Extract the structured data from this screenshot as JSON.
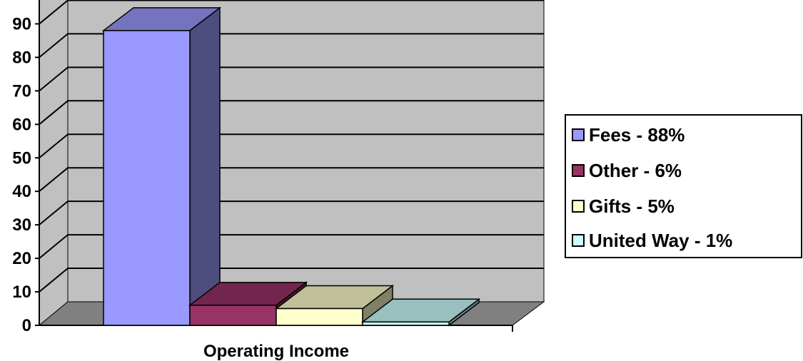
{
  "chart_data": {
    "type": "bar",
    "title": "",
    "xlabel": "Operating Income",
    "ylabel": "",
    "ylim": [
      0,
      90
    ],
    "yticks": [
      "0",
      "10",
      "20",
      "30",
      "40",
      "50",
      "60",
      "70",
      "80",
      "90"
    ],
    "grid": true,
    "legend_position": "right",
    "categories": [
      "Operating Income"
    ],
    "series": [
      {
        "name": "Fees - 88%",
        "values": [
          88
        ],
        "color": "#9999ff"
      },
      {
        "name": "Other - 6%",
        "values": [
          6
        ],
        "color": "#993366"
      },
      {
        "name": "Gifts - 5%",
        "values": [
          5
        ],
        "color": "#ffffcc"
      },
      {
        "name": "United Way - 1%",
        "values": [
          1
        ],
        "color": "#ccffff"
      }
    ]
  },
  "colors": {
    "wall": "#c0c0c0",
    "floor": "#808080",
    "gridline": "#000000"
  }
}
